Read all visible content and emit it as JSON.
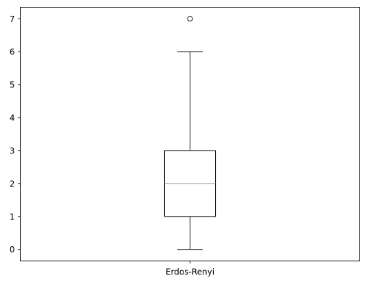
{
  "chart_data": {
    "type": "box",
    "categories": [
      "Erdos-Renyi"
    ],
    "series": [
      {
        "category": "Erdos-Renyi",
        "whisker_low": 0,
        "q1": 1,
        "median": 2,
        "q3": 3,
        "whisker_high": 6,
        "outliers": [
          7
        ]
      }
    ],
    "y_ticks": [
      "0",
      "1",
      "2",
      "3",
      "4",
      "5",
      "6",
      "7"
    ],
    "ylim": [
      -0.35,
      7.35
    ],
    "title": "",
    "xlabel": "",
    "ylabel": "",
    "grid": false,
    "colors": {
      "median": "#ff7f0e",
      "box": "#000000",
      "axes": "#000000",
      "background": "#ffffff"
    }
  }
}
